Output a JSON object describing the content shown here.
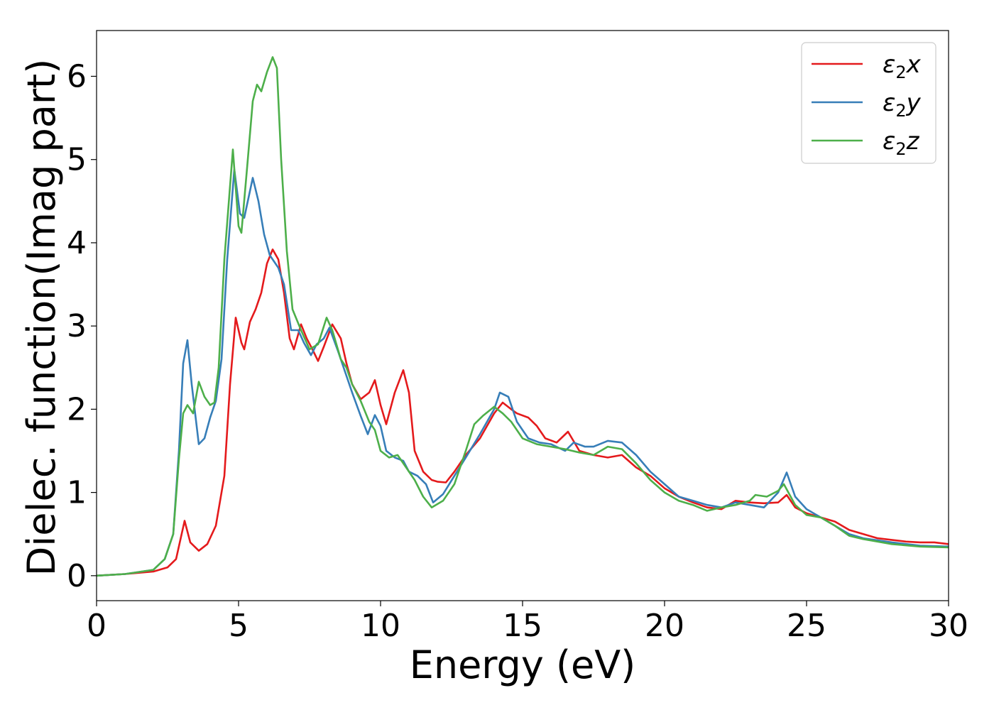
{
  "chart_data": {
    "type": "line",
    "xlabel": "Energy (eV)",
    "ylabel": "Dielec. function(Imag part)",
    "xlim": [
      0,
      30
    ],
    "ylim": [
      -0.3,
      6.55
    ],
    "xticks": [
      0,
      5,
      10,
      15,
      20,
      25,
      30
    ],
    "yticks": [
      0,
      1,
      2,
      3,
      4,
      5,
      6
    ],
    "legend_position": "top-right",
    "grid": false,
    "series": [
      {
        "name": "ε₂x",
        "legend": {
          "base": "ε",
          "sub": "2",
          "var": "x"
        },
        "color": "#e41a1c",
        "points": [
          [
            0,
            0
          ],
          [
            1,
            0.02
          ],
          [
            2,
            0.05
          ],
          [
            2.5,
            0.1
          ],
          [
            2.8,
            0.2
          ],
          [
            3.1,
            0.66
          ],
          [
            3.3,
            0.4
          ],
          [
            3.6,
            0.3
          ],
          [
            3.9,
            0.38
          ],
          [
            4.2,
            0.6
          ],
          [
            4.5,
            1.2
          ],
          [
            4.7,
            2.3
          ],
          [
            4.9,
            3.1
          ],
          [
            5.1,
            2.8
          ],
          [
            5.2,
            2.72
          ],
          [
            5.4,
            3.05
          ],
          [
            5.6,
            3.2
          ],
          [
            5.8,
            3.4
          ],
          [
            6,
            3.75
          ],
          [
            6.2,
            3.92
          ],
          [
            6.4,
            3.8
          ],
          [
            6.6,
            3.4
          ],
          [
            6.8,
            2.85
          ],
          [
            6.95,
            2.72
          ],
          [
            7.2,
            3.02
          ],
          [
            7.4,
            2.85
          ],
          [
            7.6,
            2.72
          ],
          [
            7.8,
            2.58
          ],
          [
            8,
            2.75
          ],
          [
            8.3,
            3.02
          ],
          [
            8.6,
            2.85
          ],
          [
            8.8,
            2.55
          ],
          [
            9,
            2.3
          ],
          [
            9.3,
            2.12
          ],
          [
            9.6,
            2.2
          ],
          [
            9.8,
            2.35
          ],
          [
            10,
            2.05
          ],
          [
            10.2,
            1.82
          ],
          [
            10.5,
            2.2
          ],
          [
            10.8,
            2.47
          ],
          [
            11,
            2.2
          ],
          [
            11.2,
            1.5
          ],
          [
            11.5,
            1.25
          ],
          [
            11.8,
            1.15
          ],
          [
            12,
            1.13
          ],
          [
            12.3,
            1.12
          ],
          [
            12.6,
            1.25
          ],
          [
            13,
            1.45
          ],
          [
            13.5,
            1.65
          ],
          [
            14,
            1.95
          ],
          [
            14.3,
            2.08
          ],
          [
            14.6,
            2.0
          ],
          [
            14.8,
            1.95
          ],
          [
            15.2,
            1.9
          ],
          [
            15.5,
            1.8
          ],
          [
            15.8,
            1.65
          ],
          [
            16.2,
            1.6
          ],
          [
            16.6,
            1.73
          ],
          [
            17,
            1.5
          ],
          [
            17.5,
            1.45
          ],
          [
            18,
            1.42
          ],
          [
            18.5,
            1.45
          ],
          [
            19,
            1.3
          ],
          [
            19.5,
            1.2
          ],
          [
            20,
            1.05
          ],
          [
            20.5,
            0.95
          ],
          [
            21,
            0.88
          ],
          [
            21.5,
            0.82
          ],
          [
            22,
            0.8
          ],
          [
            22.5,
            0.9
          ],
          [
            23,
            0.88
          ],
          [
            23.5,
            0.87
          ],
          [
            24,
            0.88
          ],
          [
            24.3,
            0.97
          ],
          [
            24.6,
            0.82
          ],
          [
            25,
            0.75
          ],
          [
            25.5,
            0.7
          ],
          [
            26,
            0.65
          ],
          [
            26.5,
            0.55
          ],
          [
            27,
            0.5
          ],
          [
            27.5,
            0.45
          ],
          [
            28,
            0.43
          ],
          [
            28.5,
            0.41
          ],
          [
            29,
            0.4
          ],
          [
            29.5,
            0.4
          ],
          [
            30,
            0.38
          ]
        ]
      },
      {
        "name": "ε₂y",
        "legend": {
          "base": "ε",
          "sub": "2",
          "var": "y"
        },
        "color": "#377eb8",
        "points": [
          [
            0,
            0
          ],
          [
            1,
            0.02
          ],
          [
            2,
            0.07
          ],
          [
            2.4,
            0.2
          ],
          [
            2.7,
            0.5
          ],
          [
            2.9,
            1.5
          ],
          [
            3.05,
            2.55
          ],
          [
            3.2,
            2.83
          ],
          [
            3.35,
            2.3
          ],
          [
            3.6,
            1.58
          ],
          [
            3.8,
            1.65
          ],
          [
            4.0,
            1.9
          ],
          [
            4.2,
            2.1
          ],
          [
            4.4,
            2.6
          ],
          [
            4.6,
            3.8
          ],
          [
            4.85,
            4.88
          ],
          [
            5.05,
            4.35
          ],
          [
            5.2,
            4.3
          ],
          [
            5.5,
            4.78
          ],
          [
            5.7,
            4.5
          ],
          [
            5.9,
            4.1
          ],
          [
            6.1,
            3.85
          ],
          [
            6.4,
            3.7
          ],
          [
            6.6,
            3.5
          ],
          [
            6.85,
            2.95
          ],
          [
            7.1,
            2.95
          ],
          [
            7.3,
            2.8
          ],
          [
            7.55,
            2.65
          ],
          [
            7.75,
            2.78
          ],
          [
            8,
            2.85
          ],
          [
            8.2,
            2.98
          ],
          [
            8.5,
            2.7
          ],
          [
            8.8,
            2.4
          ],
          [
            9,
            2.2
          ],
          [
            9.3,
            1.92
          ],
          [
            9.55,
            1.7
          ],
          [
            9.8,
            1.93
          ],
          [
            10,
            1.8
          ],
          [
            10.2,
            1.5
          ],
          [
            10.5,
            1.42
          ],
          [
            10.8,
            1.38
          ],
          [
            11,
            1.25
          ],
          [
            11.3,
            1.2
          ],
          [
            11.6,
            1.1
          ],
          [
            11.85,
            0.88
          ],
          [
            12.2,
            0.98
          ],
          [
            12.6,
            1.2
          ],
          [
            13,
            1.42
          ],
          [
            13.5,
            1.7
          ],
          [
            14,
            2.0
          ],
          [
            14.2,
            2.2
          ],
          [
            14.5,
            2.15
          ],
          [
            14.8,
            1.85
          ],
          [
            15.2,
            1.65
          ],
          [
            15.6,
            1.6
          ],
          [
            16,
            1.58
          ],
          [
            16.5,
            1.5
          ],
          [
            16.8,
            1.6
          ],
          [
            17.2,
            1.55
          ],
          [
            17.5,
            1.55
          ],
          [
            18,
            1.62
          ],
          [
            18.5,
            1.6
          ],
          [
            19,
            1.45
          ],
          [
            19.5,
            1.25
          ],
          [
            20,
            1.1
          ],
          [
            20.5,
            0.95
          ],
          [
            21,
            0.9
          ],
          [
            21.5,
            0.85
          ],
          [
            22,
            0.82
          ],
          [
            22.5,
            0.88
          ],
          [
            23,
            0.85
          ],
          [
            23.5,
            0.82
          ],
          [
            24,
            1.0
          ],
          [
            24.3,
            1.24
          ],
          [
            24.6,
            0.95
          ],
          [
            25,
            0.8
          ],
          [
            25.5,
            0.7
          ],
          [
            26,
            0.6
          ],
          [
            26.5,
            0.5
          ],
          [
            27,
            0.45
          ],
          [
            28,
            0.4
          ],
          [
            29,
            0.36
          ],
          [
            30,
            0.35
          ]
        ]
      },
      {
        "name": "ε₂z",
        "legend": {
          "base": "ε",
          "sub": "2",
          "var": "z"
        },
        "color": "#4daf4a",
        "points": [
          [
            0,
            0
          ],
          [
            1,
            0.02
          ],
          [
            2,
            0.07
          ],
          [
            2.4,
            0.2
          ],
          [
            2.7,
            0.5
          ],
          [
            2.9,
            1.4
          ],
          [
            3.05,
            1.95
          ],
          [
            3.2,
            2.05
          ],
          [
            3.4,
            1.95
          ],
          [
            3.6,
            2.33
          ],
          [
            3.8,
            2.15
          ],
          [
            4.0,
            2.05
          ],
          [
            4.15,
            2.08
          ],
          [
            4.3,
            2.5
          ],
          [
            4.5,
            3.8
          ],
          [
            4.8,
            5.12
          ],
          [
            5.0,
            4.2
          ],
          [
            5.1,
            4.12
          ],
          [
            5.3,
            4.9
          ],
          [
            5.5,
            5.7
          ],
          [
            5.65,
            5.9
          ],
          [
            5.8,
            5.82
          ],
          [
            6,
            6.05
          ],
          [
            6.2,
            6.23
          ],
          [
            6.35,
            6.1
          ],
          [
            6.5,
            5.0
          ],
          [
            6.7,
            3.9
          ],
          [
            6.9,
            3.2
          ],
          [
            7.2,
            2.95
          ],
          [
            7.5,
            2.72
          ],
          [
            7.8,
            2.78
          ],
          [
            8.1,
            3.1
          ],
          [
            8.3,
            2.95
          ],
          [
            8.6,
            2.6
          ],
          [
            8.8,
            2.5
          ],
          [
            9,
            2.3
          ],
          [
            9.3,
            2.1
          ],
          [
            9.6,
            1.85
          ],
          [
            9.8,
            1.75
          ],
          [
            10,
            1.5
          ],
          [
            10.3,
            1.42
          ],
          [
            10.6,
            1.45
          ],
          [
            10.9,
            1.3
          ],
          [
            11.2,
            1.15
          ],
          [
            11.5,
            0.95
          ],
          [
            11.8,
            0.82
          ],
          [
            12.2,
            0.9
          ],
          [
            12.6,
            1.1
          ],
          [
            13,
            1.5
          ],
          [
            13.3,
            1.82
          ],
          [
            13.6,
            1.92
          ],
          [
            14,
            2.03
          ],
          [
            14.3,
            1.95
          ],
          [
            14.6,
            1.85
          ],
          [
            15,
            1.65
          ],
          [
            15.5,
            1.58
          ],
          [
            16,
            1.55
          ],
          [
            16.5,
            1.52
          ],
          [
            17,
            1.48
          ],
          [
            17.5,
            1.45
          ],
          [
            18,
            1.55
          ],
          [
            18.5,
            1.52
          ],
          [
            19,
            1.35
          ],
          [
            19.5,
            1.15
          ],
          [
            20,
            1.0
          ],
          [
            20.5,
            0.9
          ],
          [
            21,
            0.85
          ],
          [
            21.5,
            0.78
          ],
          [
            22,
            0.82
          ],
          [
            22.5,
            0.85
          ],
          [
            23,
            0.9
          ],
          [
            23.2,
            0.97
          ],
          [
            23.6,
            0.95
          ],
          [
            24,
            1.02
          ],
          [
            24.2,
            1.1
          ],
          [
            24.6,
            0.85
          ],
          [
            25,
            0.73
          ],
          [
            25.5,
            0.7
          ],
          [
            26,
            0.6
          ],
          [
            26.5,
            0.48
          ],
          [
            27,
            0.44
          ],
          [
            28,
            0.38
          ],
          [
            29,
            0.35
          ],
          [
            30,
            0.34
          ]
        ]
      }
    ]
  }
}
